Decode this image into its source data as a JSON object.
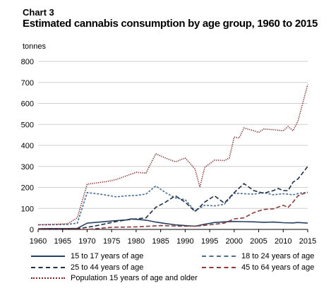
{
  "header": {
    "chart_label": "Chart 3",
    "title": "Estimated cannabis consumption by age group, 1960 to 2015",
    "units": "tonnes"
  },
  "chart_data": {
    "type": "line",
    "title": "Estimated cannabis consumption by age group, 1960 to 2015",
    "ylabel": "tonnes",
    "xlabel": "",
    "xlim": [
      1960,
      2015
    ],
    "ylim": [
      0,
      800
    ],
    "x_ticks": [
      1960,
      1965,
      1970,
      1975,
      1980,
      1985,
      1990,
      1995,
      2000,
      2005,
      2010,
      2015
    ],
    "y_ticks": [
      0,
      100,
      200,
      300,
      400,
      500,
      600,
      700,
      800
    ],
    "grid": "horizontal",
    "legend_placement": "bottom",
    "series": [
      {
        "name": "15 to 17 years of age",
        "color": "#243f60",
        "style": "solid",
        "points": [
          [
            1960,
            3
          ],
          [
            1962,
            4
          ],
          [
            1964,
            4
          ],
          [
            1966,
            4
          ],
          [
            1968,
            5
          ],
          [
            1970,
            30
          ],
          [
            1972,
            34
          ],
          [
            1974,
            38
          ],
          [
            1976,
            42
          ],
          [
            1978,
            45
          ],
          [
            1979,
            50
          ],
          [
            1980,
            48
          ],
          [
            1982,
            44
          ],
          [
            1984,
            35
          ],
          [
            1986,
            28
          ],
          [
            1988,
            22
          ],
          [
            1990,
            18
          ],
          [
            1992,
            15
          ],
          [
            1994,
            25
          ],
          [
            1996,
            33
          ],
          [
            1998,
            36
          ],
          [
            2000,
            38
          ],
          [
            2002,
            37
          ],
          [
            2004,
            36
          ],
          [
            2006,
            34
          ],
          [
            2008,
            35
          ],
          [
            2010,
            32
          ],
          [
            2012,
            31
          ],
          [
            2013,
            33
          ],
          [
            2015,
            30
          ]
        ]
      },
      {
        "name": "18 to 24 years of age",
        "color": "#4a6e96",
        "style": "dashed",
        "points": [
          [
            1960,
            22
          ],
          [
            1962,
            22
          ],
          [
            1964,
            23
          ],
          [
            1966,
            24
          ],
          [
            1968,
            30
          ],
          [
            1970,
            175
          ],
          [
            1972,
            170
          ],
          [
            1974,
            163
          ],
          [
            1976,
            155
          ],
          [
            1978,
            160
          ],
          [
            1980,
            162
          ],
          [
            1982,
            168
          ],
          [
            1984,
            207
          ],
          [
            1986,
            175
          ],
          [
            1988,
            150
          ],
          [
            1990,
            142
          ],
          [
            1992,
            88
          ],
          [
            1994,
            115
          ],
          [
            1996,
            112
          ],
          [
            1998,
            120
          ],
          [
            2000,
            172
          ],
          [
            2002,
            170
          ],
          [
            2004,
            168
          ],
          [
            2006,
            175
          ],
          [
            2008,
            165
          ],
          [
            2010,
            170
          ],
          [
            2012,
            165
          ],
          [
            2014,
            175
          ],
          [
            2015,
            175
          ]
        ]
      },
      {
        "name": "25 to 44 years of age",
        "color": "#1f2f45",
        "style": "longdash",
        "points": [
          [
            1960,
            2
          ],
          [
            1964,
            2
          ],
          [
            1968,
            3
          ],
          [
            1970,
            10
          ],
          [
            1972,
            18
          ],
          [
            1974,
            28
          ],
          [
            1976,
            38
          ],
          [
            1978,
            45
          ],
          [
            1980,
            50
          ],
          [
            1982,
            55
          ],
          [
            1984,
            105
          ],
          [
            1986,
            130
          ],
          [
            1988,
            160
          ],
          [
            1990,
            130
          ],
          [
            1992,
            85
          ],
          [
            1994,
            130
          ],
          [
            1996,
            160
          ],
          [
            1998,
            125
          ],
          [
            2000,
            175
          ],
          [
            2002,
            218
          ],
          [
            2004,
            185
          ],
          [
            2006,
            172
          ],
          [
            2008,
            185
          ],
          [
            2009,
            195
          ],
          [
            2010,
            185
          ],
          [
            2011,
            185
          ],
          [
            2012,
            225
          ],
          [
            2013,
            240
          ],
          [
            2015,
            300
          ]
        ]
      },
      {
        "name": "45 to 64 years of age",
        "color": "#8b3a3a",
        "style": "longdash",
        "points": [
          [
            1960,
            0
          ],
          [
            1970,
            0
          ],
          [
            1975,
            10
          ],
          [
            1980,
            12
          ],
          [
            1985,
            18
          ],
          [
            1990,
            15
          ],
          [
            1993,
            17
          ],
          [
            1995,
            22
          ],
          [
            1998,
            30
          ],
          [
            2000,
            50
          ],
          [
            2002,
            55
          ],
          [
            2004,
            80
          ],
          [
            2006,
            95
          ],
          [
            2008,
            98
          ],
          [
            2010,
            115
          ],
          [
            2011,
            105
          ],
          [
            2012,
            130
          ],
          [
            2013,
            160
          ],
          [
            2015,
            178
          ]
        ]
      },
      {
        "name": "Population 15 years of age and older",
        "color": "#7b2323",
        "style": "dotted",
        "points": [
          [
            1960,
            22
          ],
          [
            1962,
            24
          ],
          [
            1964,
            25
          ],
          [
            1966,
            27
          ],
          [
            1968,
            55
          ],
          [
            1970,
            215
          ],
          [
            1972,
            222
          ],
          [
            1974,
            228
          ],
          [
            1976,
            238
          ],
          [
            1978,
            255
          ],
          [
            1980,
            272
          ],
          [
            1982,
            268
          ],
          [
            1984,
            360
          ],
          [
            1986,
            340
          ],
          [
            1988,
            322
          ],
          [
            1990,
            340
          ],
          [
            1992,
            288
          ],
          [
            1993,
            202
          ],
          [
            1994,
            295
          ],
          [
            1996,
            330
          ],
          [
            1998,
            328
          ],
          [
            1999,
            340
          ],
          [
            2000,
            440
          ],
          [
            2001,
            435
          ],
          [
            2002,
            483
          ],
          [
            2004,
            470
          ],
          [
            2005,
            462
          ],
          [
            2006,
            478
          ],
          [
            2008,
            475
          ],
          [
            2010,
            470
          ],
          [
            2011,
            490
          ],
          [
            2012,
            470
          ],
          [
            2013,
            515
          ],
          [
            2015,
            690
          ]
        ]
      }
    ]
  }
}
